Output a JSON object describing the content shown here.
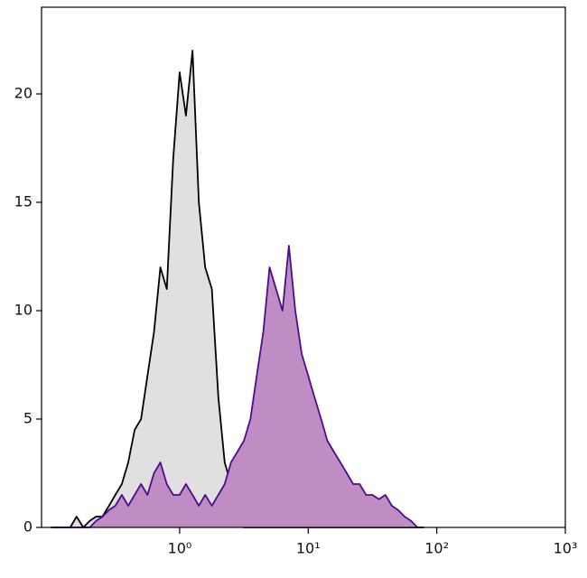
{
  "chart_data": {
    "type": "area",
    "log_x": true,
    "xlim": [
      0.0843,
      1000
    ],
    "ylim": [
      0,
      24
    ],
    "xticks": [
      {
        "value": 1,
        "label": "10⁰"
      },
      {
        "value": 10,
        "label": "10¹"
      },
      {
        "value": 100,
        "label": "10²"
      },
      {
        "value": 1000,
        "label": "10³"
      }
    ],
    "yticks": [
      0,
      5,
      10,
      15,
      20
    ],
    "x": [
      0.1,
      0.112,
      0.126,
      0.141,
      0.158,
      0.178,
      0.2,
      0.224,
      0.251,
      0.282,
      0.316,
      0.355,
      0.398,
      0.447,
      0.501,
      0.562,
      0.631,
      0.708,
      0.794,
      0.891,
      1,
      1.12,
      1.26,
      1.41,
      1.58,
      1.78,
      2,
      2.24,
      2.51,
      2.82,
      3.16,
      3.55,
      3.98,
      4.47,
      5.01,
      5.62,
      6.31,
      7.08,
      7.94,
      8.91,
      10,
      11.2,
      12.6,
      14.1,
      15.8,
      17.8,
      20,
      22.4,
      25.1,
      28.2,
      31.6,
      35.5,
      39.8,
      44.7,
      50.1,
      56.2,
      63.1,
      70.8,
      79.4
    ],
    "series": [
      {
        "color": "#000000",
        "fill": "#e0e0e0",
        "values": [
          0,
          0,
          0,
          0,
          0.5,
          0,
          0.3,
          0.5,
          0.5,
          1,
          1.5,
          2,
          3,
          4.5,
          5,
          7,
          9,
          12,
          11,
          17,
          21,
          19,
          22,
          15,
          12,
          11,
          6,
          3,
          2,
          0.5,
          0,
          0,
          0,
          0,
          0,
          0,
          0,
          0,
          0,
          0,
          0,
          0,
          0,
          0,
          0,
          0,
          0,
          0,
          0,
          0,
          0,
          0,
          0,
          0,
          0,
          0,
          0,
          0,
          0
        ]
      },
      {
        "color": "#4b0d8e",
        "fill": "#c08cc4",
        "values": [
          0,
          0,
          0,
          0,
          0,
          0,
          0,
          0.3,
          0.5,
          0.8,
          1,
          1.5,
          1,
          1.5,
          2,
          1.5,
          2.5,
          3,
          2,
          1.5,
          1.5,
          2,
          1.5,
          1,
          1.5,
          1,
          1.5,
          2,
          3,
          3.5,
          4,
          5,
          7,
          9,
          12,
          11,
          10,
          13,
          10,
          8,
          7,
          6,
          5,
          4,
          3.5,
          3,
          2.5,
          2,
          2,
          1.5,
          1.5,
          1.3,
          1.5,
          1,
          0.8,
          0.5,
          0.3,
          0,
          0
        ]
      }
    ]
  }
}
